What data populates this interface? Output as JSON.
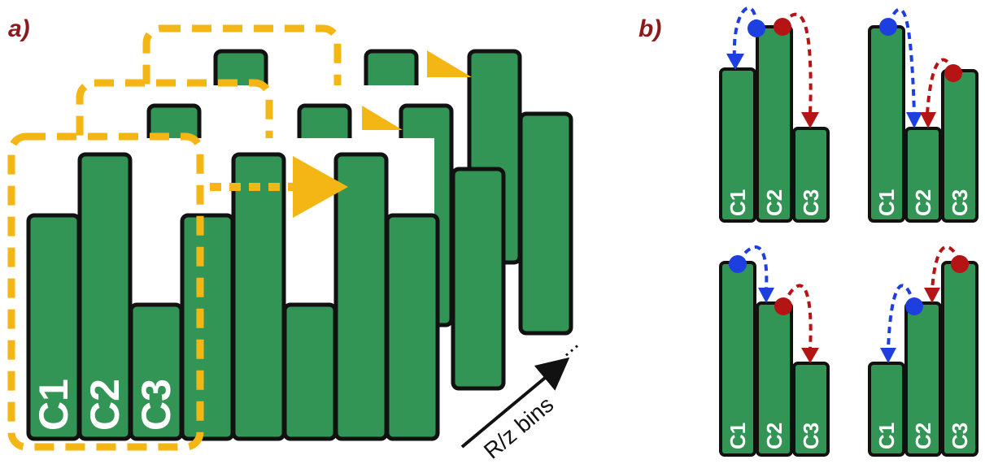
{
  "panel_a": {
    "label": "a)",
    "bar_labels": [
      "C1",
      "C2",
      "C3"
    ],
    "axis_label": "R/z bins",
    "ellipsis": "..."
  },
  "panel_b": {
    "label": "b)",
    "bar_labels": [
      "C1",
      "C2",
      "C3"
    ]
  },
  "colors": {
    "bar_fill": "#339555",
    "outline": "#111111",
    "window": "#F4B614",
    "panel_label": "#8B1A1A",
    "blue_marker": "#1E3FE0",
    "red_marker": "#B41414"
  }
}
